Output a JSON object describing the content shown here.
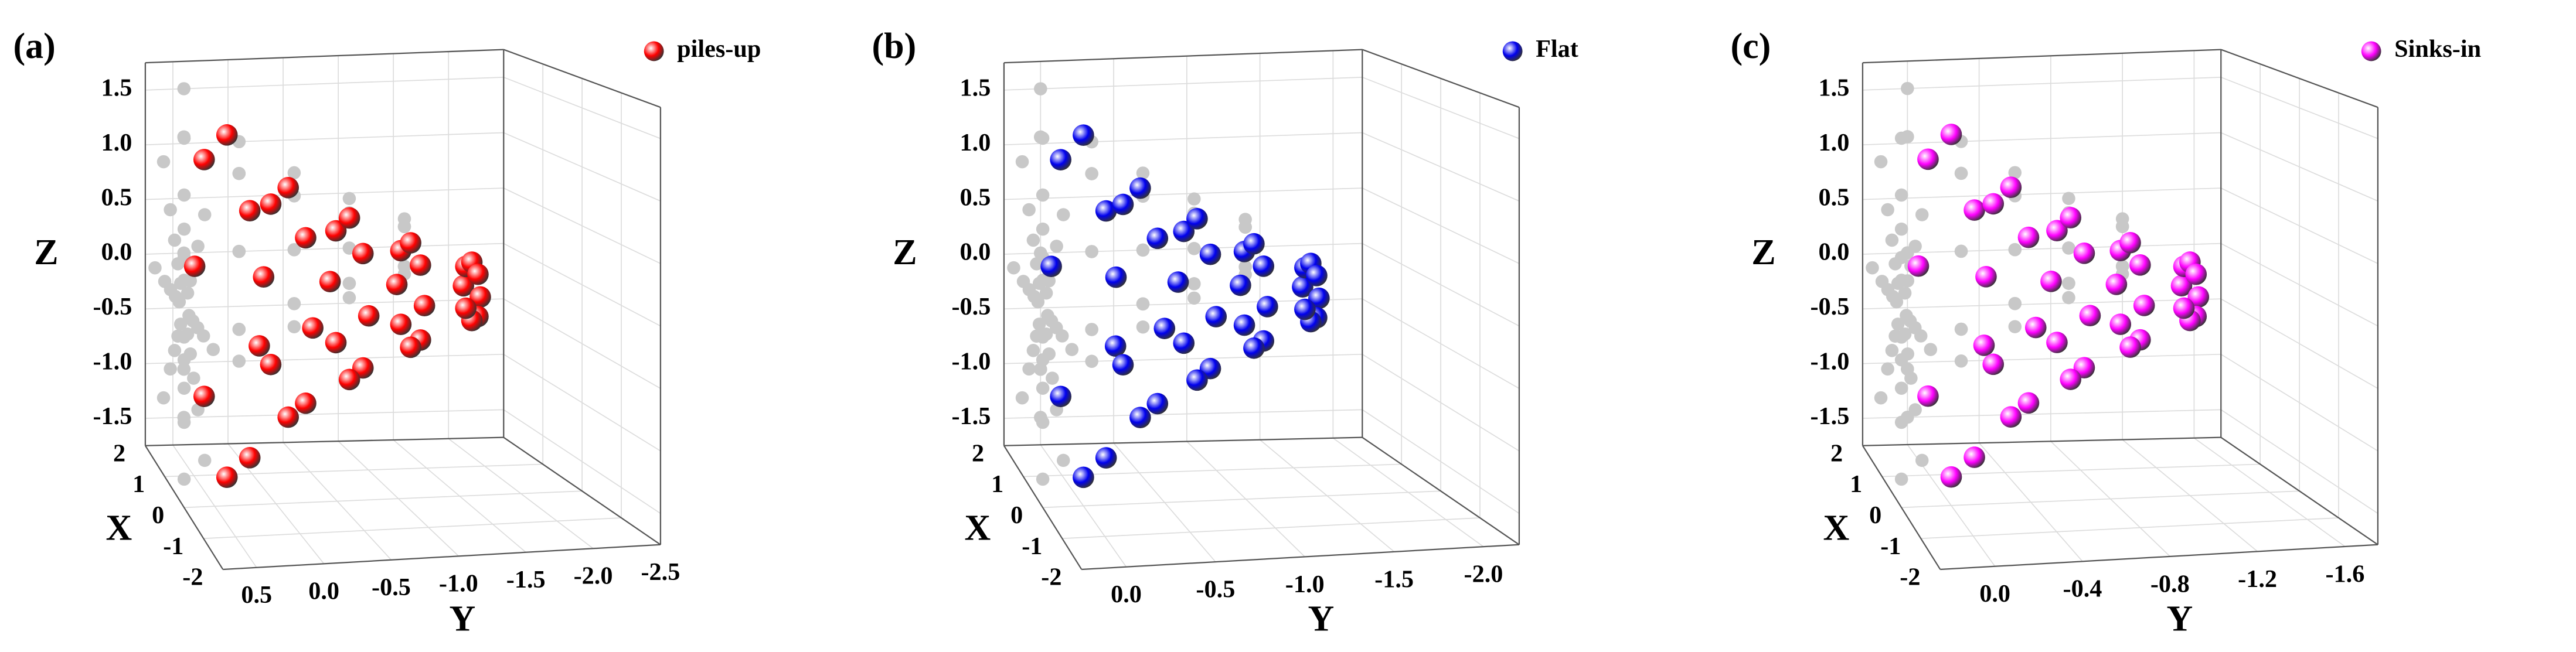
{
  "chart_data": [
    {
      "type": "scatter3d",
      "panel_label": "(a)",
      "xlabel": "X",
      "ylabel": "Y",
      "zlabel": "Z",
      "xlim": [
        -2,
        2
      ],
      "ylim": [
        0.75,
        -2.5
      ],
      "zlim": [
        -1.75,
        1.75
      ],
      "xticks": [
        -2,
        -1,
        0,
        1,
        2
      ],
      "yticks": [
        0.5,
        {
          "value": 0,
          "label": "0.0"
        },
        -0.5,
        {
          "value": -1,
          "label": "-1.0"
        },
        -1.5,
        {
          "value": -2,
          "label": "-2.0"
        },
        -2.5
      ],
      "zticks": [
        -1.5,
        {
          "value": -1,
          "label": "-1.0"
        },
        -0.5,
        {
          "value": 0,
          "label": "0.0"
        },
        0.5,
        {
          "value": 1,
          "label": "1.0"
        },
        1.5
      ],
      "series": [
        {
          "name": "piles-up",
          "color": "#ff0000",
          "x": [
            1.5,
            1.06,
            0,
            -1.06,
            -1.5,
            -1.06,
            0,
            1.06,
            1,
            0.71,
            0,
            -0.71,
            -1,
            -0.71,
            0,
            0.71,
            0.7,
            0.49,
            0,
            -0.49,
            -0.7,
            -0.49,
            0,
            0.49,
            0.45,
            0.32,
            0,
            -0.32,
            -0.45,
            -0.32,
            0,
            0.32,
            0.25,
            0.18,
            0,
            -0.18,
            -0.25,
            -0.18,
            0,
            0.18
          ],
          "y": [
            0.4,
            0.4,
            0.4,
            0.4,
            0.4,
            0.4,
            0.4,
            0.4,
            -0.1,
            -0.1,
            -0.1,
            -0.1,
            -0.1,
            -0.1,
            -0.1,
            -0.1,
            -0.6,
            -0.6,
            -0.6,
            -0.6,
            -0.6,
            -0.6,
            -0.6,
            -0.6,
            -1.1,
            -1.1,
            -1.1,
            -1.1,
            -1.1,
            -1.1,
            -1.1,
            -1.1,
            -1.6,
            -1.6,
            -1.6,
            -1.6,
            -1.6,
            -1.6,
            -1.6,
            -1.6
          ],
          "z": [
            0,
            1.06,
            1.5,
            1.06,
            0,
            -1.06,
            -1.5,
            -1.06,
            0,
            0.71,
            1,
            0.71,
            0,
            -0.71,
            -1,
            -0.71,
            0,
            0.49,
            0.7,
            0.49,
            0,
            -0.49,
            -0.7,
            -0.49,
            0,
            0.32,
            0.45,
            0.32,
            0,
            -0.32,
            -0.45,
            -0.32,
            0,
            0.18,
            0.25,
            0.18,
            0,
            -0.18,
            -0.25,
            -0.18
          ]
        }
      ]
    },
    {
      "type": "scatter3d",
      "panel_label": "(b)",
      "xlabel": "X",
      "ylabel": "Y",
      "zlabel": "Z",
      "xlim": [
        -2,
        2
      ],
      "ylim": [
        0.25,
        -2.2
      ],
      "zlim": [
        -1.75,
        1.75
      ],
      "xticks": [
        -2,
        -1,
        0,
        1,
        2
      ],
      "yticks": [
        {
          "value": 0,
          "label": "0.0"
        },
        -0.5,
        {
          "value": -1,
          "label": "-1.0"
        },
        -1.5,
        {
          "value": -2,
          "label": "-2.0"
        }
      ],
      "zticks": [
        -1.5,
        {
          "value": -1,
          "label": "-1.0"
        },
        -0.5,
        {
          "value": 0,
          "label": "0.0"
        },
        0.5,
        {
          "value": 1,
          "label": "1.0"
        },
        1.5
      ],
      "series": [
        {
          "name": "Flat",
          "color": "#0000ee",
          "x": [
            1.5,
            1.06,
            0,
            -1.06,
            -1.5,
            -1.06,
            0,
            1.06,
            1,
            0.71,
            0,
            -0.71,
            -1,
            -0.71,
            0,
            0.71,
            0.7,
            0.49,
            0,
            -0.49,
            -0.7,
            -0.49,
            0,
            0.49,
            0.45,
            0.32,
            0,
            -0.32,
            -0.45,
            -0.32,
            0,
            0.32,
            0.25,
            0.18,
            0,
            -0.18,
            -0.25,
            -0.18,
            0,
            0.18
          ],
          "y": [
            0,
            0,
            0,
            0,
            0,
            0,
            0,
            0,
            -0.35,
            -0.35,
            -0.35,
            -0.35,
            -0.35,
            -0.35,
            -0.35,
            -0.35,
            -0.7,
            -0.7,
            -0.7,
            -0.7,
            -0.7,
            -0.7,
            -0.7,
            -0.7,
            -1.05,
            -1.05,
            -1.05,
            -1.05,
            -1.05,
            -1.05,
            -1.05,
            -1.05,
            -1.4,
            -1.4,
            -1.4,
            -1.4,
            -1.4,
            -1.4,
            -1.4,
            -1.4
          ],
          "z": [
            0,
            1.06,
            1.5,
            1.06,
            0,
            -1.06,
            -1.5,
            -1.06,
            0,
            0.71,
            1,
            0.71,
            0,
            -0.71,
            -1,
            -0.71,
            0,
            0.49,
            0.7,
            0.49,
            0,
            -0.49,
            -0.7,
            -0.49,
            0,
            0.32,
            0.45,
            0.32,
            0,
            -0.32,
            -0.45,
            -0.32,
            0,
            0.18,
            0.25,
            0.18,
            0,
            -0.18,
            -0.25,
            -0.18
          ]
        }
      ]
    },
    {
      "type": "scatter3d",
      "panel_label": "(c)",
      "xlabel": "X",
      "ylabel": "Y",
      "zlabel": "Z",
      "xlim": [
        -2,
        2
      ],
      "ylim": [
        0.25,
        -1.75
      ],
      "zlim": [
        -1.75,
        1.75
      ],
      "xticks": [
        -2,
        -1,
        0,
        1,
        2
      ],
      "yticks": [
        {
          "value": 0,
          "label": "0.0"
        },
        -0.4,
        -0.8,
        -1.2,
        -1.6
      ],
      "zticks": [
        -1.5,
        {
          "value": -1,
          "label": "-1.0"
        },
        -0.5,
        {
          "value": 0,
          "label": "0.0"
        },
        0.5,
        {
          "value": 1,
          "label": "1.0"
        },
        1.5
      ],
      "series": [
        {
          "name": "Sinks-in",
          "color": "#ff00ff",
          "x": [
            1.5,
            1.06,
            0,
            -1.06,
            -1.5,
            -1.06,
            0,
            1.06,
            1,
            0.71,
            0,
            -0.71,
            -1,
            -0.71,
            0,
            0.71,
            0.7,
            0.49,
            0,
            -0.49,
            -0.7,
            -0.49,
            0,
            0.49,
            0.45,
            0.32,
            0,
            -0.32,
            -0.45,
            -0.32,
            0,
            0.32,
            0.25,
            0.18,
            0,
            -0.18,
            -0.25,
            -0.18,
            0,
            0.18
          ],
          "y": [
            0,
            0,
            0,
            0,
            0,
            0,
            0,
            0,
            -0.3,
            -0.3,
            -0.3,
            -0.3,
            -0.3,
            -0.3,
            -0.3,
            -0.3,
            -0.6,
            -0.6,
            -0.6,
            -0.6,
            -0.6,
            -0.6,
            -0.6,
            -0.6,
            -0.9,
            -0.9,
            -0.9,
            -0.9,
            -0.9,
            -0.9,
            -0.9,
            -0.9,
            -1.2,
            -1.2,
            -1.2,
            -1.2,
            -1.2,
            -1.2,
            -1.2,
            -1.2
          ],
          "z": [
            0,
            1.06,
            1.5,
            1.06,
            0,
            -1.06,
            -1.5,
            -1.06,
            0,
            0.71,
            1,
            0.71,
            0,
            -0.71,
            -1,
            -0.71,
            0,
            0.49,
            0.7,
            0.49,
            0,
            -0.49,
            -0.7,
            -0.49,
            0,
            0.32,
            0.45,
            0.32,
            0,
            -0.32,
            -0.45,
            -0.32,
            0,
            0.18,
            0.25,
            0.18,
            0,
            -0.18,
            -0.25,
            -0.18
          ]
        }
      ]
    }
  ]
}
